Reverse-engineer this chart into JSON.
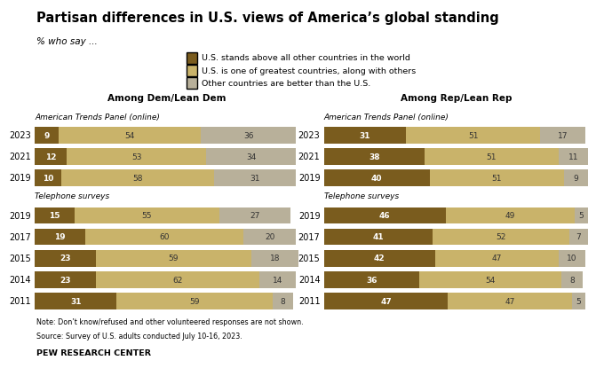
{
  "title": "Partisan differences in U.S. views of America’s global standing",
  "subtitle": "% who say ...",
  "legend_labels": [
    "U.S. stands above all other countries in the world",
    "U.S. is one of greatest countries, along with others",
    "Other countries are better than the U.S."
  ],
  "colors": [
    "#7a5c1e",
    "#c9b36a",
    "#b8b09a"
  ],
  "dem_online": {
    "years": [
      "2023",
      "2021",
      "2019"
    ],
    "v1": [
      9,
      12,
      10
    ],
    "v2": [
      54,
      53,
      58
    ],
    "v3": [
      36,
      34,
      31
    ]
  },
  "dem_phone": {
    "years": [
      "2019",
      "2017",
      "2015",
      "2014",
      "2011"
    ],
    "v1": [
      15,
      19,
      23,
      23,
      31
    ],
    "v2": [
      55,
      60,
      59,
      62,
      59
    ],
    "v3": [
      27,
      20,
      18,
      14,
      8
    ]
  },
  "rep_online": {
    "years": [
      "2023",
      "2021",
      "2019"
    ],
    "v1": [
      31,
      38,
      40
    ],
    "v2": [
      51,
      51,
      51
    ],
    "v3": [
      17,
      11,
      9
    ]
  },
  "rep_phone": {
    "years": [
      "2019",
      "2017",
      "2015",
      "2014",
      "2011"
    ],
    "v1": [
      46,
      41,
      42,
      36,
      47
    ],
    "v2": [
      49,
      52,
      47,
      54,
      47
    ],
    "v3": [
      5,
      7,
      10,
      8,
      5
    ]
  },
  "note1": "Note: Don’t know/refused and other volunteered responses are not shown.",
  "note2": "Source: Survey of U.S. adults conducted July 10-16, 2023.",
  "source_label": "PEW RESEARCH CENTER",
  "bg": "#ffffff"
}
